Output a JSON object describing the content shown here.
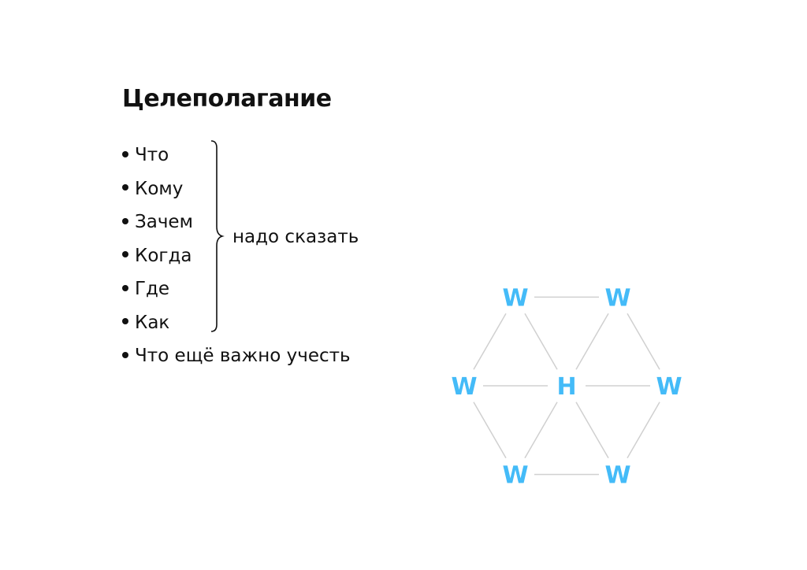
{
  "title": "Целеполагание",
  "bullets": [
    "Что",
    "Кому",
    "Зачем",
    "Когда",
    "Где",
    "Как",
    "Что ещё важно учесть"
  ],
  "brace_note": "надо сказать",
  "diagram": {
    "node_color": "#44bbf8",
    "edge_color": "#d0d0d0",
    "center": "H",
    "outer": [
      "W",
      "W",
      "W",
      "W",
      "W",
      "W"
    ]
  }
}
